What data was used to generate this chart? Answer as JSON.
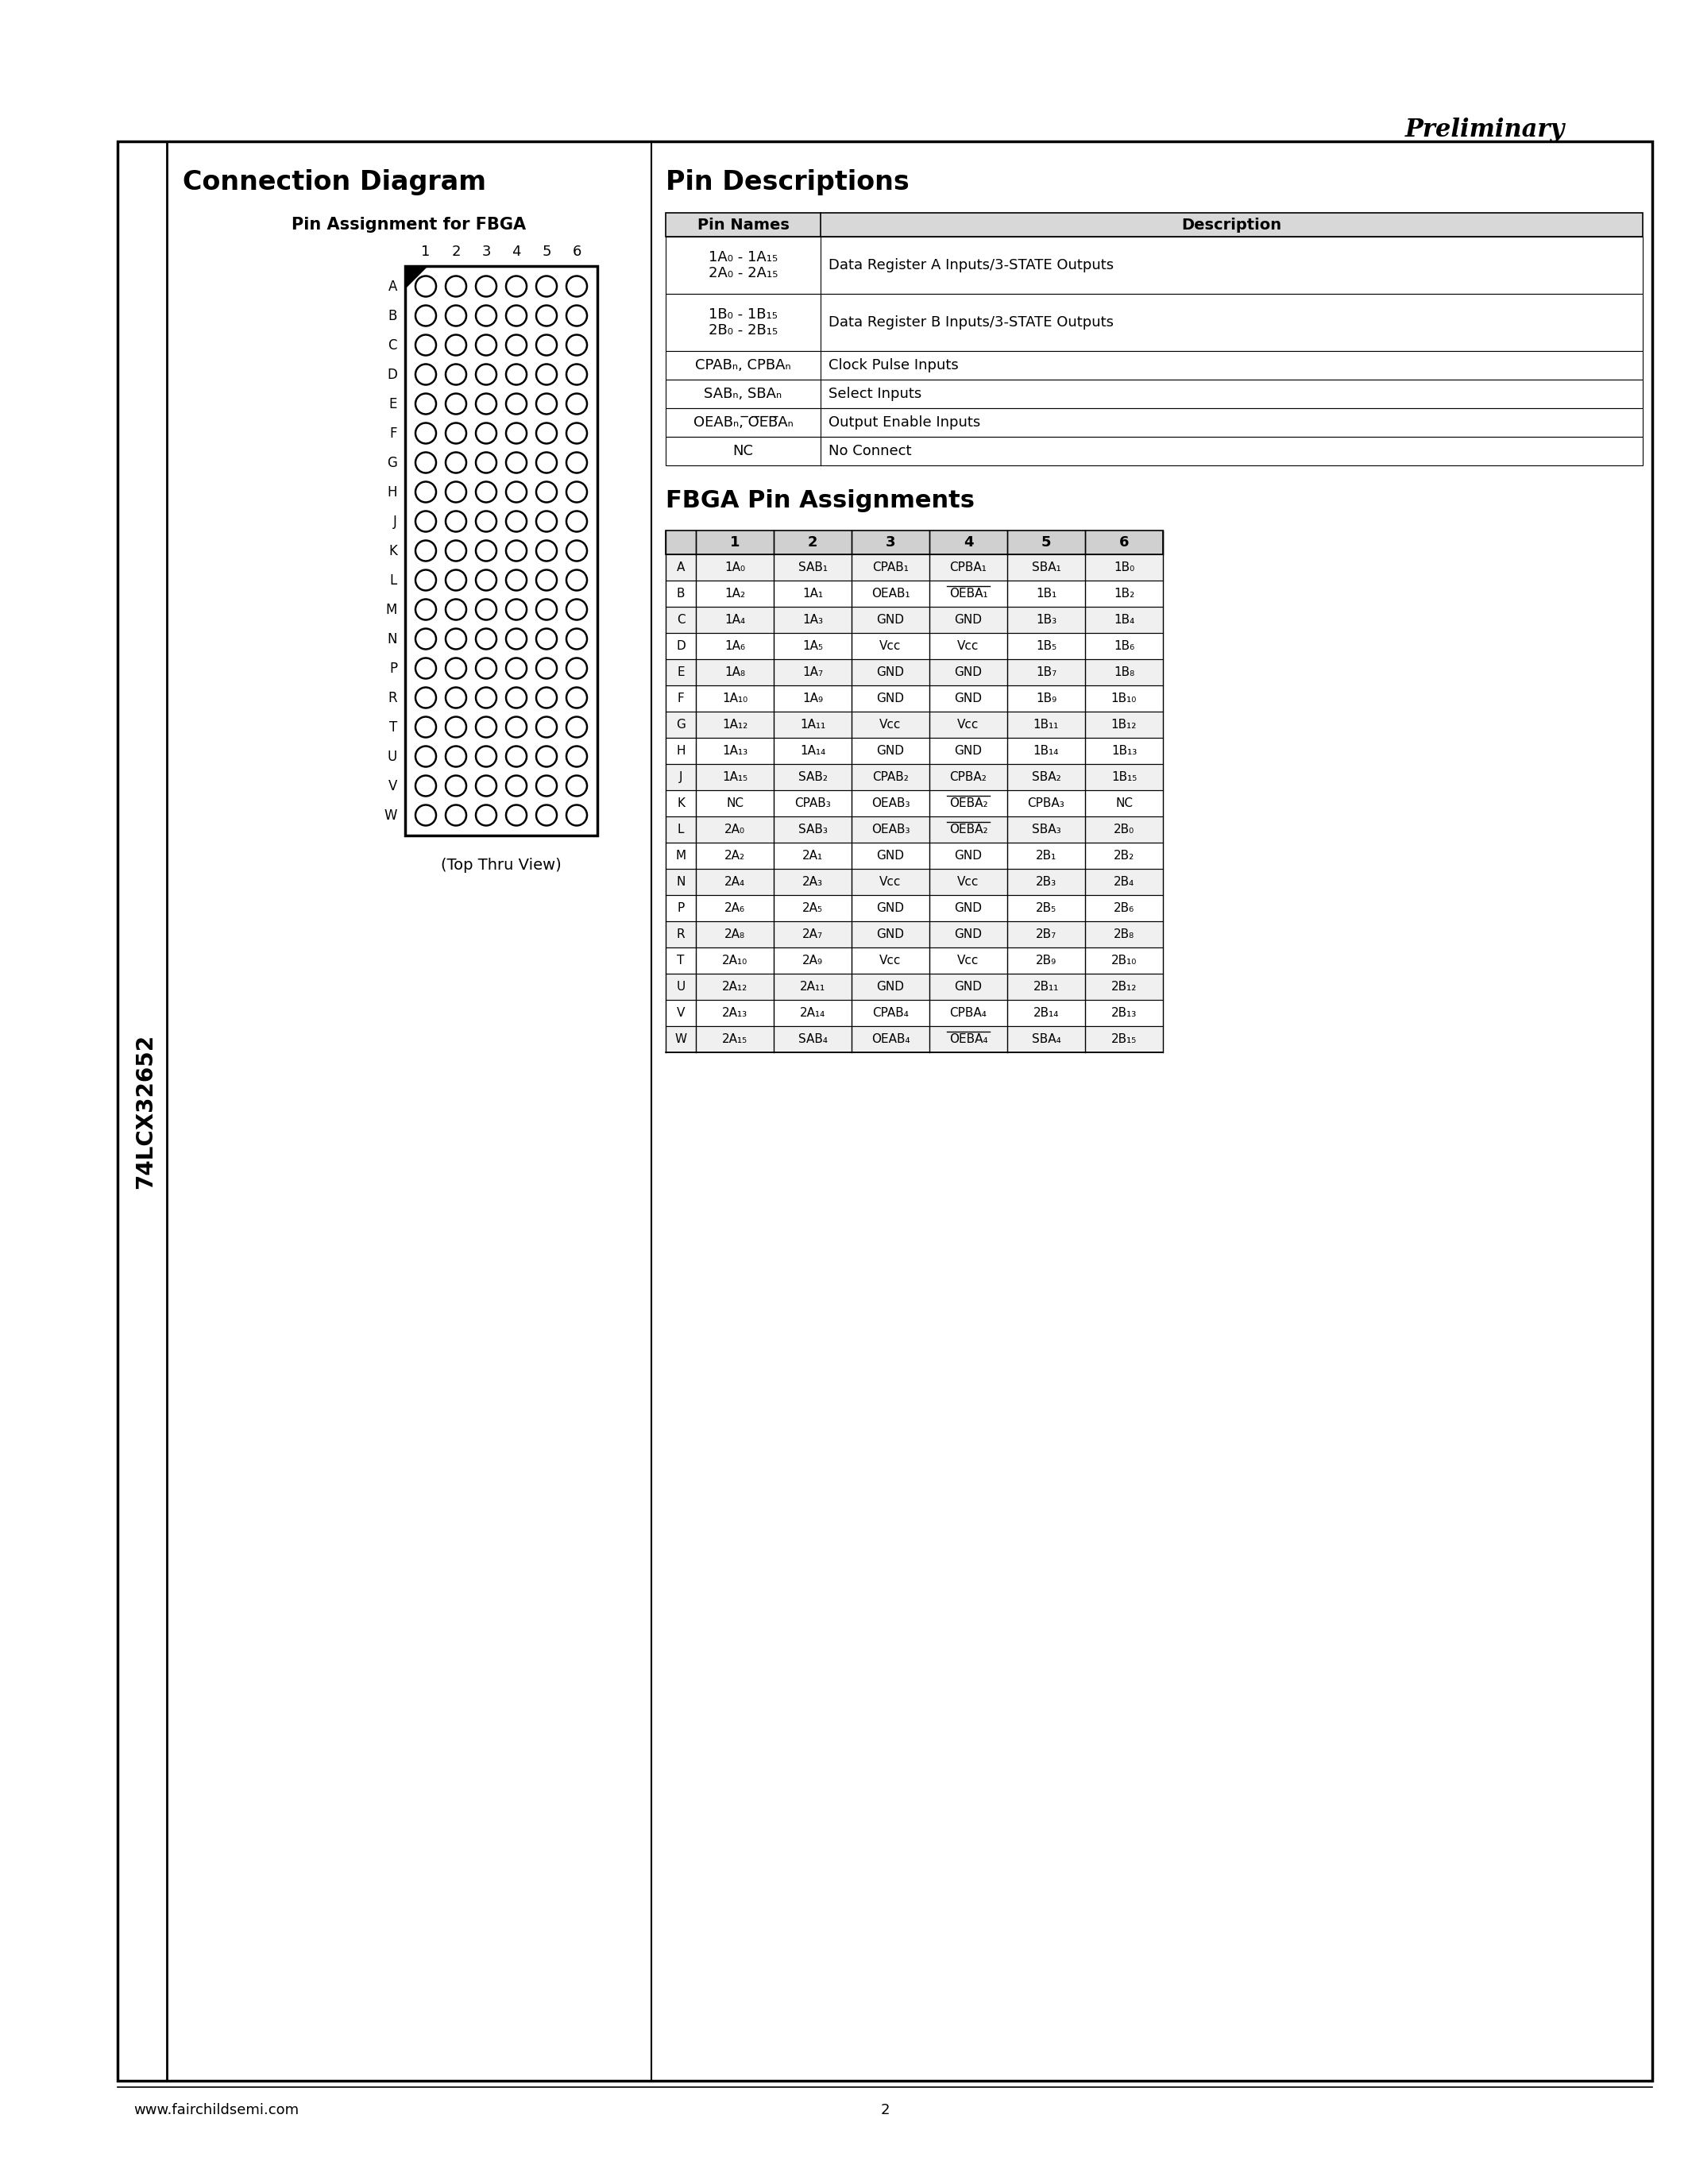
{
  "preliminary_text": "Preliminary",
  "part_number": "74LCX32652",
  "connection_diagram_title": "Connection Diagram",
  "pin_assignment_subtitle": "Pin Assignment for FBGA",
  "fbga_cols": [
    "1",
    "2",
    "3",
    "4",
    "5",
    "6"
  ],
  "fbga_rows": [
    "A",
    "B",
    "C",
    "D",
    "E",
    "F",
    "G",
    "H",
    "J",
    "K",
    "L",
    "M",
    "N",
    "P",
    "R",
    "T",
    "U",
    "V",
    "W"
  ],
  "top_thru_view": "(Top Thru View)",
  "pin_desc_title": "Pin Descriptions",
  "pin_desc_headers": [
    "Pin Names",
    "Description"
  ],
  "pin_desc_rows": [
    [
      "1A₀ - 1A₁₅",
      "Data Register A Inputs/3-STATE Outputs"
    ],
    [
      "2A₀ - 2A₁₅",
      ""
    ],
    [
      "1B₀ - 1B₁₅",
      "Data Register B Inputs/3-STATE Outputs"
    ],
    [
      "2B₀ - 2B₁₅",
      ""
    ],
    [
      "CPABₙ, CPBAₙ",
      "Clock Pulse Inputs"
    ],
    [
      "SABₙ, SBAₙ",
      "Select Inputs"
    ],
    [
      "OEABₙ, ̅O̅E̅B̅Aₙ",
      "Output Enable Inputs"
    ],
    [
      "NC",
      "No Connect"
    ]
  ],
  "fbga_assign_title": "FBGA Pin Assignments",
  "fbga_headers": [
    "",
    "1",
    "2",
    "3",
    "4",
    "5",
    "6"
  ],
  "fbga_data": [
    [
      "A",
      "1A₀",
      "SAB₁",
      "CPAB₁",
      "CPBA₁",
      "SBA₁",
      "1B₀"
    ],
    [
      "B",
      "1A₂",
      "1A₁",
      "OEAB₁",
      "OEBA₁",
      "1B₁",
      "1B₂"
    ],
    [
      "C",
      "1A₄",
      "1A₃",
      "GND",
      "GND",
      "1B₃",
      "1B₄"
    ],
    [
      "D",
      "1A₆",
      "1A₅",
      "Vᴄᴄ",
      "Vᴄᴄ",
      "1B₅",
      "1B₆"
    ],
    [
      "E",
      "1A₈",
      "1A₇",
      "GND",
      "GND",
      "1B₇",
      "1B₈"
    ],
    [
      "F",
      "1A₁₀",
      "1A₉",
      "GND",
      "GND",
      "1B₉",
      "1B₁₀"
    ],
    [
      "G",
      "1A₁₂",
      "1A₁₁",
      "Vᴄᴄ",
      "Vᴄᴄ",
      "1B₁₁",
      "1B₁₂"
    ],
    [
      "H",
      "1A₁₃",
      "1A₁₄",
      "GND",
      "GND",
      "1B₁₄",
      "1B₁₃"
    ],
    [
      "J",
      "1A₁₅",
      "SAB₂",
      "CPAB₂",
      "CPBA₂",
      "SBA₂",
      "1B₁₅"
    ],
    [
      "K",
      "NC",
      "CPAB₃",
      "OEAB₃",
      "OEBA₂",
      "CPBA₃",
      "NC"
    ],
    [
      "L",
      "2A₀",
      "SAB₃",
      "OEAB₃",
      "OEBA₂",
      "SBA₃",
      "2B₀"
    ],
    [
      "M",
      "2A₂",
      "2A₁",
      "GND",
      "GND",
      "2B₁",
      "2B₂"
    ],
    [
      "N",
      "2A₄",
      "2A₃",
      "Vᴄᴄ",
      "Vᴄᴄ",
      "2B₃",
      "2B₄"
    ],
    [
      "P",
      "2A₆",
      "2A₅",
      "GND",
      "GND",
      "2B₅",
      "2B₆"
    ],
    [
      "R",
      "2A₈",
      "2A₇",
      "GND",
      "GND",
      "2B₇",
      "2B₈"
    ],
    [
      "T",
      "2A₁₀",
      "2A₉",
      "Vᴄᴄ",
      "Vᴄᴄ",
      "2B₉",
      "2B₁₀"
    ],
    [
      "U",
      "2A₁₂",
      "2A₁₁",
      "GND",
      "GND",
      "2B₁₁",
      "2B₁₂"
    ],
    [
      "V",
      "2A₁₃",
      "2A₁₄",
      "CPAB₄",
      "CPBA₄",
      "2B₁₄",
      "2B₁₃"
    ],
    [
      "W",
      "2A₁₅",
      "SAB₄",
      "OEAB₄",
      "OEBA₄",
      "SBA₄",
      "2B₁₅"
    ]
  ],
  "footer_url": "www.fairchildsemi.com",
  "footer_page": "2",
  "overline_cells": {
    "B_col4": true,
    "K_col4": true,
    "L_col4": true,
    "W_col4": true
  }
}
